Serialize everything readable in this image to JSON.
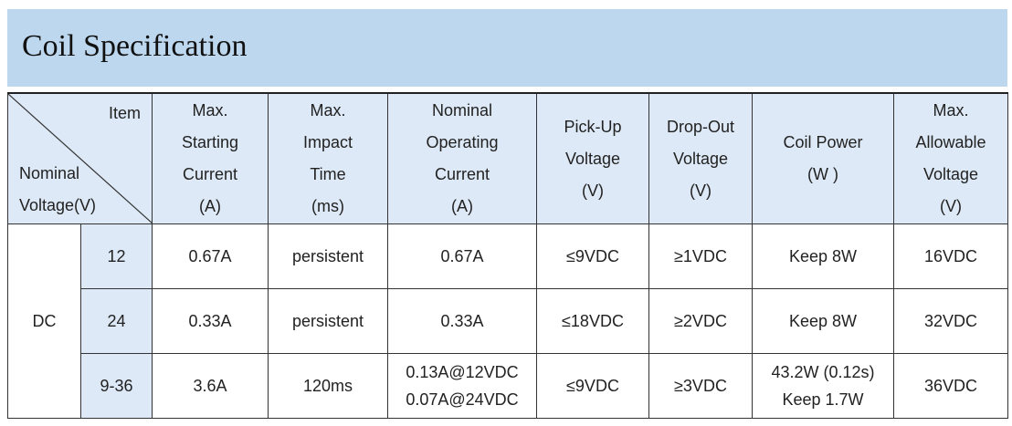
{
  "title": "Coil Specification",
  "table": {
    "corner": {
      "item": "Item",
      "nominal": [
        "Nominal",
        "Voltage(V)"
      ]
    },
    "columns": [
      [
        "Max.",
        "Starting",
        "Current",
        "(A)"
      ],
      [
        "Max.",
        "Impact",
        "Time",
        "(ms)"
      ],
      [
        "Nominal",
        "Operating",
        "Current",
        "(A)"
      ],
      [
        "Pick-Up",
        "Voltage",
        "(V)"
      ],
      [
        "Drop-Out",
        "Voltage",
        "(V)"
      ],
      [
        "Coil Power",
        "(W )"
      ],
      [
        "Max.",
        "Allowable",
        "Voltage",
        "(V)"
      ]
    ],
    "group": "DC",
    "rows": [
      {
        "voltage": "12",
        "cells": [
          "0.67A",
          "persistent",
          "0.67A",
          "≤9VDC",
          "≥1VDC",
          "Keep 8W",
          "16VDC"
        ]
      },
      {
        "voltage": "24",
        "cells": [
          "0.33A",
          "persistent",
          "0.33A",
          "≤18VDC",
          "≥2VDC",
          "Keep 8W",
          "32VDC"
        ]
      },
      {
        "voltage": "9-36",
        "cells": [
          "3.6A",
          "120ms",
          [
            "0.13A@12VDC",
            "0.07A@24VDC"
          ],
          "≤9VDC",
          "≥3VDC",
          [
            "43.2W (0.12s)",
            "Keep 1.7W"
          ],
          "36VDC"
        ]
      }
    ]
  }
}
